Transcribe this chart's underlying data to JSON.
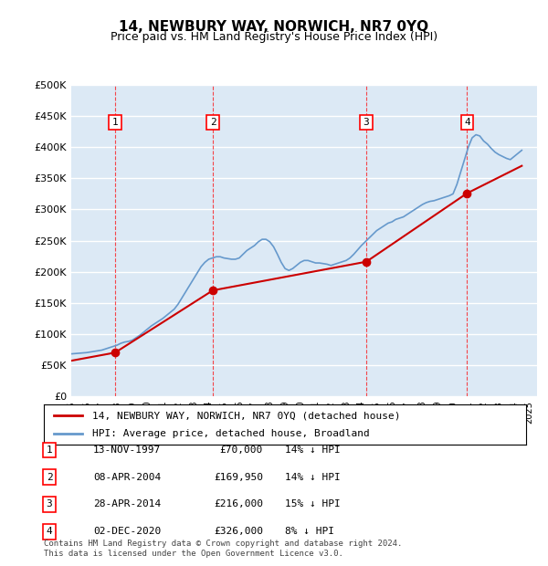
{
  "title": "14, NEWBURY WAY, NORWICH, NR7 0YQ",
  "subtitle": "Price paid vs. HM Land Registry's House Price Index (HPI)",
  "ylabel_ticks": [
    "£0",
    "£50K",
    "£100K",
    "£150K",
    "£200K",
    "£250K",
    "£300K",
    "£350K",
    "£400K",
    "£450K",
    "£500K"
  ],
  "ytick_values": [
    0,
    50000,
    100000,
    150000,
    200000,
    250000,
    300000,
    350000,
    400000,
    450000,
    500000
  ],
  "xlim_start": 1995.0,
  "xlim_end": 2025.5,
  "ylim_min": 0,
  "ylim_max": 500000,
  "background_color": "#dce9f5",
  "plot_bg_color": "#dce9f5",
  "grid_color": "#ffffff",
  "sale_color": "#cc0000",
  "hpi_color": "#6699cc",
  "sale_label": "14, NEWBURY WAY, NORWICH, NR7 0YQ (detached house)",
  "hpi_label": "HPI: Average price, detached house, Broadland",
  "transactions": [
    {
      "num": 1,
      "date": "13-NOV-1997",
      "price": 70000,
      "pct": "14%",
      "year": 1997.87
    },
    {
      "num": 2,
      "date": "08-APR-2004",
      "price": 169950,
      "pct": "14%",
      "year": 2004.27
    },
    {
      "num": 3,
      "date": "28-APR-2014",
      "price": 216000,
      "pct": "15%",
      "year": 2014.32
    },
    {
      "num": 4,
      "date": "02-DEC-2020",
      "price": 326000,
      "pct": "8%",
      "year": 2020.92
    }
  ],
  "footer": "Contains HM Land Registry data © Crown copyright and database right 2024.\nThis data is licensed under the Open Government Licence v3.0.",
  "hpi_data_years": [
    1995.0,
    1995.25,
    1995.5,
    1995.75,
    1996.0,
    1996.25,
    1996.5,
    1996.75,
    1997.0,
    1997.25,
    1997.5,
    1997.75,
    1998.0,
    1998.25,
    1998.5,
    1998.75,
    1999.0,
    1999.25,
    1999.5,
    1999.75,
    2000.0,
    2000.25,
    2000.5,
    2000.75,
    2001.0,
    2001.25,
    2001.5,
    2001.75,
    2002.0,
    2002.25,
    2002.5,
    2002.75,
    2003.0,
    2003.25,
    2003.5,
    2003.75,
    2004.0,
    2004.25,
    2004.5,
    2004.75,
    2005.0,
    2005.25,
    2005.5,
    2005.75,
    2006.0,
    2006.25,
    2006.5,
    2006.75,
    2007.0,
    2007.25,
    2007.5,
    2007.75,
    2008.0,
    2008.25,
    2008.5,
    2008.75,
    2009.0,
    2009.25,
    2009.5,
    2009.75,
    2010.0,
    2010.25,
    2010.5,
    2010.75,
    2011.0,
    2011.25,
    2011.5,
    2011.75,
    2012.0,
    2012.25,
    2012.5,
    2012.75,
    2013.0,
    2013.25,
    2013.5,
    2013.75,
    2014.0,
    2014.25,
    2014.5,
    2014.75,
    2015.0,
    2015.25,
    2015.5,
    2015.75,
    2016.0,
    2016.25,
    2016.5,
    2016.75,
    2017.0,
    2017.25,
    2017.5,
    2017.75,
    2018.0,
    2018.25,
    2018.5,
    2018.75,
    2019.0,
    2019.25,
    2019.5,
    2019.75,
    2020.0,
    2020.25,
    2020.5,
    2020.75,
    2021.0,
    2021.25,
    2021.5,
    2021.75,
    2022.0,
    2022.25,
    2022.5,
    2022.75,
    2023.0,
    2023.25,
    2023.5,
    2023.75,
    2024.0,
    2024.25,
    2024.5
  ],
  "hpi_data_values": [
    68000,
    68500,
    69000,
    69500,
    70000,
    71000,
    72000,
    73000,
    74000,
    76000,
    78000,
    80000,
    82000,
    85000,
    87000,
    88000,
    90000,
    94000,
    98000,
    103000,
    108000,
    113000,
    117000,
    121000,
    125000,
    130000,
    135000,
    140000,
    148000,
    158000,
    168000,
    178000,
    188000,
    198000,
    208000,
    215000,
    220000,
    222000,
    224000,
    224000,
    222000,
    221000,
    220000,
    220000,
    222000,
    228000,
    234000,
    238000,
    242000,
    248000,
    252000,
    252000,
    248000,
    240000,
    228000,
    215000,
    205000,
    202000,
    205000,
    210000,
    215000,
    218000,
    218000,
    216000,
    214000,
    214000,
    213000,
    212000,
    210000,
    212000,
    214000,
    216000,
    218000,
    222000,
    228000,
    235000,
    242000,
    248000,
    254000,
    260000,
    266000,
    270000,
    274000,
    278000,
    280000,
    284000,
    286000,
    288000,
    292000,
    296000,
    300000,
    304000,
    308000,
    311000,
    313000,
    314000,
    316000,
    318000,
    320000,
    322000,
    325000,
    340000,
    360000,
    380000,
    400000,
    415000,
    420000,
    418000,
    410000,
    405000,
    398000,
    392000,
    388000,
    385000,
    382000,
    380000,
    385000,
    390000,
    395000
  ],
  "sale_line_data_years": [
    1995.0,
    1997.87,
    2004.27,
    2014.32,
    2020.92,
    2024.5
  ],
  "sale_line_data_values": [
    57000,
    70000,
    169950,
    216000,
    326000,
    370000
  ]
}
